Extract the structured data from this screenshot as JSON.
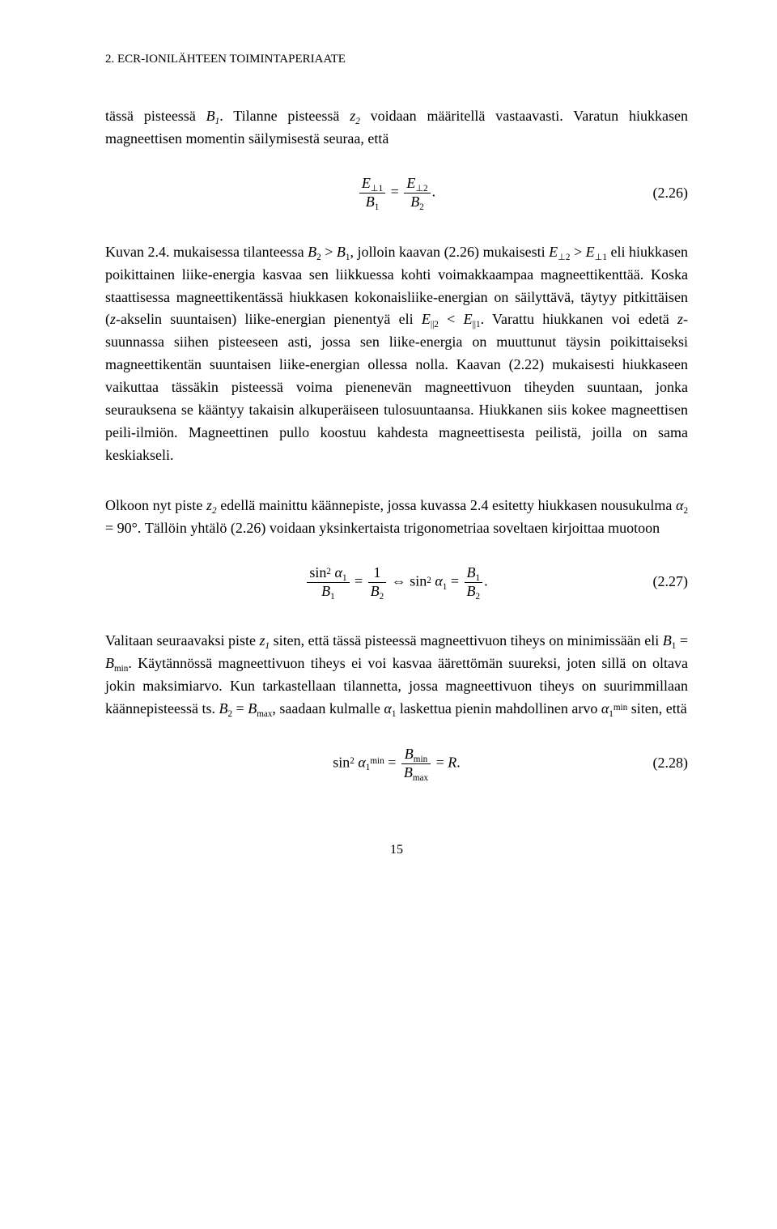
{
  "header": "2. ECR-IONILÄHTEEN TOIMINTAPERIAATE",
  "para1_a": "tässä pisteessä ",
  "para1_b": ". Tilanne pisteessä ",
  "para1_c": " voidaan määritellä vastaavasti. Varatun hiukkasen magneettisen momentin säilymisestä seuraa, että",
  "eq26_num": "(2.26)",
  "para2_a": "Kuvan 2.4. mukaisessa tilanteessa ",
  "para2_b": ", jolloin kaavan (2.26) mukaisesti ",
  "para2_c": " eli hiukkasen poikittainen liike-energia kasvaa sen liikkuessa kohti voimakkaampaa magneettikenttää. Koska staattisessa magneettikentässä hiukkasen kokonaisliike-energian on säilyttävä, täytyy pitkittäisen (",
  "para2_d": "-akselin suuntaisen) liike-energian pienentyä eli ",
  "para2_e": ". Varattu hiukkanen voi edetä ",
  "para2_f": "-suunnassa siihen pisteeseen asti, jossa sen liike-energia on muuttunut täysin poikittaiseksi magneettikentän suuntaisen liike-energian ollessa nolla. Kaavan (2.22) mukaisesti hiukkaseen vaikuttaa tässäkin pisteessä voima pienenevän magneettivuon tiheyden suuntaan, jonka seurauksena se kääntyy takaisin alkuperäiseen tulosuuntaansa. Hiukkanen siis kokee magneettisen peili-ilmiön. Magneettinen pullo koostuu kahdesta magneettisesta peilistä, joilla on sama keskiakseli.",
  "para3_a": "Olkoon nyt piste ",
  "para3_b": " edellä mainittu käännepiste, jossa kuvassa 2.4 esitetty hiukkasen nousukulma ",
  "para3_c": " = 90°. Tällöin yhtälö (2.26) voidaan yksinkertaista trigonometriaa soveltaen kirjoittaa muotoon",
  "eq27_num": "(2.27)",
  "para4_a": "Valitaan seuraavaksi piste ",
  "para4_b": " siten, että tässä pisteessä magneettivuon tiheys on minimissään eli ",
  "para4_c": ". Käytännössä magneettivuon tiheys ei voi kasvaa äärettömän suureksi, joten sillä on oltava jokin maksimiarvo. Kun tarkastellaan tilannetta, jossa magneettivuon tiheys on suurimmillaan käännepisteessä ts. ",
  "para4_d": ", saadaan kulmalle ",
  "para4_e": " laskettua pienin mahdollinen arvo ",
  "para4_f": " siten, että",
  "eq28_num": "(2.28)",
  "pagenum": "15",
  "sym": {
    "B1": "B",
    "B1s": "1",
    "z2": "z",
    "z2s": "2",
    "Eperp1": "E",
    "Eperp1s": "⊥1",
    "Eperp2": "E",
    "Eperp2s": "⊥2",
    "B2": "B",
    "B2s": "2",
    "gt": " > ",
    "lt": " < ",
    "eq": " = ",
    "Epar1": "E",
    "Epar1s": "||1",
    "Epar2": "E",
    "Epar2s": "||2",
    "z": "z",
    "alpha": "α",
    "alpha2s": "2",
    "alpha1s": "1",
    "z1": "z",
    "z1s": "1",
    "Bmin": "B",
    "Bmins": "min",
    "Bmax": "B",
    "Bmaxs": "max",
    "alpha1min_up": "min",
    "R": "R",
    "sin": "sin",
    "iff": " ⇔ ",
    "period": "."
  }
}
